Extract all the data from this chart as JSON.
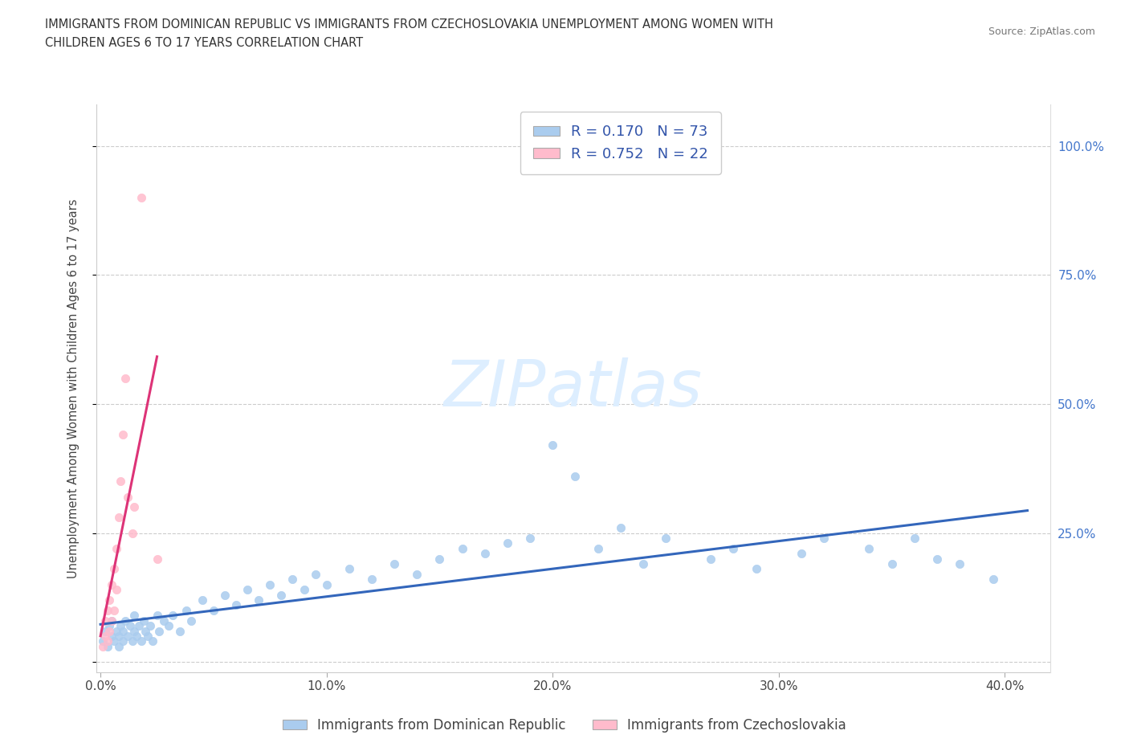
{
  "title_line1": "IMMIGRANTS FROM DOMINICAN REPUBLIC VS IMMIGRANTS FROM CZECHOSLOVAKIA UNEMPLOYMENT AMONG WOMEN WITH",
  "title_line2": "CHILDREN AGES 6 TO 17 YEARS CORRELATION CHART",
  "source": "Source: ZipAtlas.com",
  "ylabel": "Unemployment Among Women with Children Ages 6 to 17 years",
  "xlim": [
    -0.002,
    0.42
  ],
  "ylim": [
    -0.02,
    1.08
  ],
  "xticks": [
    0.0,
    0.1,
    0.2,
    0.3,
    0.4
  ],
  "xtick_labels": [
    "0.0%",
    "10.0%",
    "20.0%",
    "30.0%",
    "40.0%"
  ],
  "yticks": [
    0.0,
    0.25,
    0.5,
    0.75,
    1.0
  ],
  "ytick_labels_right": [
    "",
    "25.0%",
    "50.0%",
    "75.0%",
    "100.0%"
  ],
  "series1_color": "#aaccee",
  "series2_color": "#ffbbcc",
  "line1_color": "#3366bb",
  "line2_color": "#dd3377",
  "watermark": "ZIPatlas",
  "watermark_color": "#ddeeff",
  "series1_label": "Immigrants from Dominican Republic",
  "series2_label": "Immigrants from Czechoslovakia",
  "blue_x": [
    0.001,
    0.002,
    0.003,
    0.004,
    0.005,
    0.005,
    0.006,
    0.007,
    0.008,
    0.008,
    0.009,
    0.01,
    0.01,
    0.011,
    0.012,
    0.013,
    0.014,
    0.015,
    0.015,
    0.016,
    0.017,
    0.018,
    0.019,
    0.02,
    0.021,
    0.022,
    0.023,
    0.025,
    0.026,
    0.028,
    0.03,
    0.032,
    0.035,
    0.038,
    0.04,
    0.045,
    0.05,
    0.055,
    0.06,
    0.065,
    0.07,
    0.075,
    0.08,
    0.085,
    0.09,
    0.095,
    0.1,
    0.11,
    0.12,
    0.13,
    0.14,
    0.15,
    0.16,
    0.17,
    0.18,
    0.19,
    0.2,
    0.21,
    0.22,
    0.23,
    0.24,
    0.25,
    0.27,
    0.28,
    0.29,
    0.31,
    0.32,
    0.34,
    0.35,
    0.36,
    0.37,
    0.38,
    0.395
  ],
  "blue_y": [
    0.04,
    0.06,
    0.03,
    0.07,
    0.05,
    0.08,
    0.04,
    0.06,
    0.03,
    0.05,
    0.07,
    0.04,
    0.06,
    0.08,
    0.05,
    0.07,
    0.04,
    0.06,
    0.09,
    0.05,
    0.07,
    0.04,
    0.08,
    0.06,
    0.05,
    0.07,
    0.04,
    0.09,
    0.06,
    0.08,
    0.07,
    0.09,
    0.06,
    0.1,
    0.08,
    0.12,
    0.1,
    0.13,
    0.11,
    0.14,
    0.12,
    0.15,
    0.13,
    0.16,
    0.14,
    0.17,
    0.15,
    0.18,
    0.16,
    0.19,
    0.17,
    0.2,
    0.22,
    0.21,
    0.23,
    0.24,
    0.42,
    0.36,
    0.22,
    0.26,
    0.19,
    0.24,
    0.2,
    0.22,
    0.18,
    0.21,
    0.24,
    0.22,
    0.19,
    0.24,
    0.2,
    0.19,
    0.16
  ],
  "pink_x": [
    0.001,
    0.002,
    0.002,
    0.003,
    0.003,
    0.004,
    0.004,
    0.005,
    0.005,
    0.006,
    0.006,
    0.007,
    0.007,
    0.008,
    0.009,
    0.01,
    0.011,
    0.012,
    0.014,
    0.015,
    0.018,
    0.025
  ],
  "pink_y": [
    0.03,
    0.05,
    0.08,
    0.04,
    0.1,
    0.06,
    0.12,
    0.08,
    0.15,
    0.1,
    0.18,
    0.14,
    0.22,
    0.28,
    0.35,
    0.44,
    0.55,
    0.32,
    0.25,
    0.3,
    0.9,
    0.2
  ]
}
